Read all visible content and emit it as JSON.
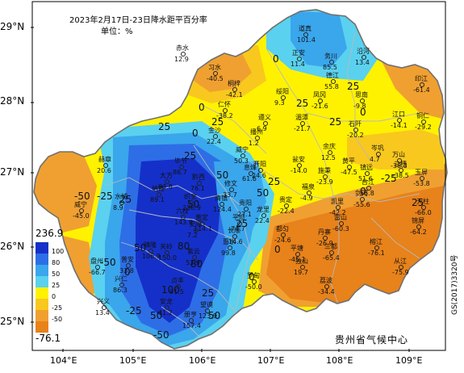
{
  "title": {
    "line1": "2023年2月17日-23日降水距平百分率",
    "line2": "单位：%"
  },
  "axes": {
    "lat_labels": [
      "29°N",
      "28°N",
      "27°N",
      "26°N",
      "25°N"
    ],
    "lon_labels": [
      "104°E",
      "105°E",
      "106°E",
      "107°E",
      "108°E",
      "109°E"
    ]
  },
  "legend": {
    "max": "236.9",
    "min": "-76.1",
    "ticks": [
      "100",
      "80",
      "50",
      "25",
      "0",
      "-25",
      "-50"
    ],
    "colors": [
      "#1530c8",
      "#2d6ee6",
      "#3aa6ec",
      "#5ad1ef",
      "#fff200",
      "#f8c81e",
      "#f0a030",
      "#e8821a"
    ]
  },
  "isolines": [
    "0",
    "25",
    "25",
    "25",
    "0",
    "25",
    "25",
    "0",
    "-25",
    "-50",
    "-50",
    "0",
    "25",
    "50",
    "80",
    "50",
    "25",
    "0",
    "25",
    "50",
    "100",
    "80",
    "-25",
    "-50",
    "0",
    "25",
    "50",
    "50",
    "-25",
    "0",
    "25",
    "0",
    "25",
    "50"
  ],
  "stations": [
    {
      "name": "道真",
      "value": "101.4"
    },
    {
      "name": "正安",
      "value": "11.4"
    },
    {
      "name": "务川",
      "value": "85.5"
    },
    {
      "name": "沿河",
      "value": "13.4"
    },
    {
      "name": "赤水",
      "value": "12.9"
    },
    {
      "name": "习水",
      "value": "-40.5"
    },
    {
      "name": "桐梓",
      "value": "-42.1"
    },
    {
      "name": "绥阳",
      "value": "9.3"
    },
    {
      "name": "凤冈",
      "value": "-21.6"
    },
    {
      "name": "德江",
      "value": "55.8"
    },
    {
      "name": "思南",
      "value": "-9.8"
    },
    {
      "name": "印江",
      "value": "-61.4"
    },
    {
      "name": "仁怀",
      "value": "-38.2"
    },
    {
      "name": "遵义",
      "value": "6.9"
    },
    {
      "name": "湄潭",
      "value": "-21.7"
    },
    {
      "name": "江口",
      "value": "-14.1"
    },
    {
      "name": "铜仁",
      "value": "-29.2"
    },
    {
      "name": "金沙",
      "value": "22.4"
    },
    {
      "name": "播州",
      "value": "1.2"
    },
    {
      "name": "石阡",
      "value": "-20.2"
    },
    {
      "name": "余庆",
      "value": "12.5"
    },
    {
      "name": "岑巩",
      "value": "4.7"
    },
    {
      "name": "万山",
      "value": "-38.3"
    },
    {
      "name": "威宁",
      "value": "50.3"
    },
    {
      "name": "赫章",
      "value": "20.6"
    },
    {
      "name": "毕节",
      "value": "86.7"
    },
    {
      "name": "大方",
      "value": "93.8"
    },
    {
      "name": "黔西",
      "value": "76.1"
    },
    {
      "name": "息烽",
      "value": "61.6"
    },
    {
      "name": "开阳",
      "value": "24.6"
    },
    {
      "name": "瓮安",
      "value": "-14.0"
    },
    {
      "name": "黄平",
      "value": "-47.5"
    },
    {
      "name": "施秉",
      "value": "-23.9"
    },
    {
      "name": "镇远",
      "value": "51.6"
    },
    {
      "name": "三穗",
      "value": "-38.5"
    },
    {
      "name": "玉屏",
      "value": "-53.8"
    },
    {
      "name": "天柱",
      "value": "-66.0"
    },
    {
      "name": "纳雍",
      "value": "89.1"
    },
    {
      "name": "织金",
      "value": "236.9"
    },
    {
      "name": "修文",
      "value": "33.7"
    },
    {
      "name": "清镇",
      "value": "124.4"
    },
    {
      "name": "贵阳",
      "value": "27.1"
    },
    {
      "name": "龙里",
      "value": "22.4"
    },
    {
      "name": "贵定",
      "value": "-22.4"
    },
    {
      "name": "福泉",
      "value": "-4.9"
    },
    {
      "name": "凯里",
      "value": "-42.2"
    },
    {
      "name": "剑河",
      "value": "-55.6"
    },
    {
      "name": "台江",
      "value": "55.8"
    },
    {
      "name": "雷山",
      "value": "-60.3"
    },
    {
      "name": "锦屏",
      "value": "-64.2"
    },
    {
      "name": "水城",
      "value": "8.9"
    },
    {
      "name": "六枝",
      "value": "143.9"
    },
    {
      "name": "普定",
      "value": "114.1"
    },
    {
      "name": "平坝",
      "value": "74.7"
    },
    {
      "name": "安顺",
      "value": "7.2"
    },
    {
      "name": "长顺",
      "value": "-14.6"
    },
    {
      "name": "都匀",
      "value": "-24.6"
    },
    {
      "name": "丹寨",
      "value": "-26.9"
    },
    {
      "name": "榕江",
      "value": "-76.1"
    },
    {
      "name": "盘州",
      "value": "-66.7"
    },
    {
      "name": "普安",
      "value": "33.8"
    },
    {
      "name": "晴隆",
      "value": "106.9"
    },
    {
      "name": "关岭",
      "value": "150.0"
    },
    {
      "name": "紫云",
      "value": "52.9"
    },
    {
      "name": "惠水",
      "value": "99.8"
    },
    {
      "name": "平塘",
      "value": "-45.1"
    },
    {
      "name": "独山",
      "value": "19.7"
    },
    {
      "name": "三都",
      "value": "-65.4"
    },
    {
      "name": "从江",
      "value": "-75.9"
    },
    {
      "name": "兴仁",
      "value": "86.3"
    },
    {
      "name": "贞丰",
      "value": "91.5"
    },
    {
      "name": "望谟",
      "value": "123.9"
    },
    {
      "name": "罗甸",
      "value": "-50.0"
    },
    {
      "name": "荔波",
      "value": "-34.4"
    },
    {
      "name": "兴义",
      "value": "13.4"
    },
    {
      "name": "安龙",
      "value": "41.2"
    },
    {
      "name": "册亨",
      "value": "157.4"
    },
    {
      "name": "威宁",
      "value": "-45.0"
    }
  ],
  "credit": "贵州省气候中心",
  "review_code": "GS(2017)3320号"
}
